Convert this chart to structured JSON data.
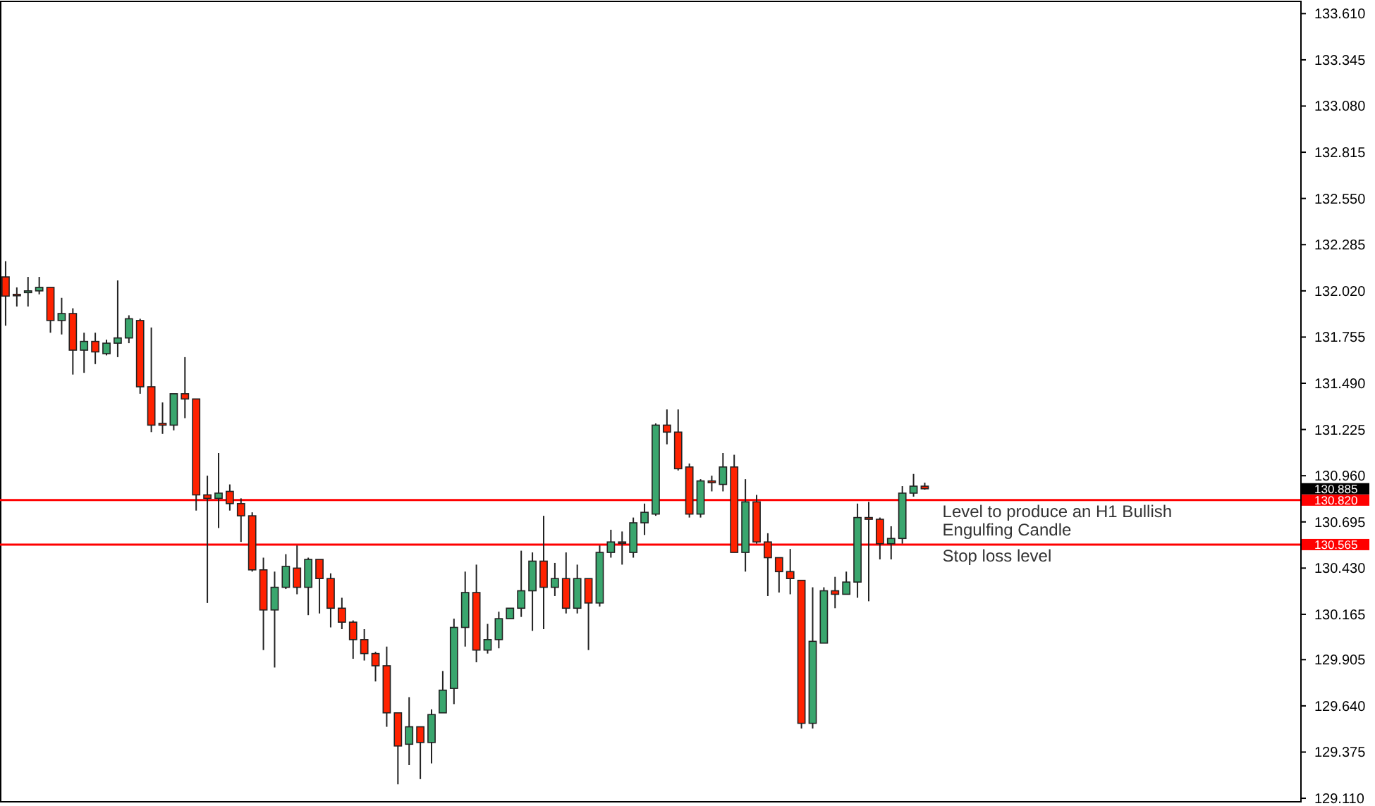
{
  "chart_data": {
    "type": "candlestick",
    "categories": [
      null,
      null,
      null,
      null,
      null,
      null,
      null,
      null,
      null,
      null,
      null,
      null,
      null,
      null,
      null,
      null,
      null,
      null,
      null,
      null,
      null,
      null,
      null,
      null,
      null,
      null,
      null,
      null,
      null,
      null,
      null,
      null,
      null,
      null,
      null,
      null,
      null,
      null,
      null,
      null,
      null,
      null,
      null,
      null,
      null,
      null,
      null,
      null,
      null,
      null,
      null,
      null,
      null,
      null,
      null,
      null,
      null,
      null,
      null,
      null,
      null,
      null,
      null,
      null,
      null,
      null,
      null,
      null,
      null,
      null,
      null,
      null,
      null,
      null,
      null,
      null,
      null,
      null,
      null,
      null,
      null,
      null,
      null,
      null,
      null,
      null,
      null,
      null,
      null,
      null,
      null,
      null,
      null,
      null,
      null,
      null,
      null,
      null,
      null,
      null,
      null,
      null,
      null,
      null,
      null,
      null,
      null,
      null,
      null,
      null,
      null,
      null,
      null,
      null,
      null,
      null
    ],
    "ohlc": [
      [
        132.1,
        132.19,
        131.82,
        131.99
      ],
      [
        132.0,
        132.04,
        131.93,
        132.0
      ],
      [
        132.01,
        132.1,
        131.93,
        132.02
      ],
      [
        132.02,
        132.1,
        132.0,
        132.04
      ],
      [
        132.04,
        132.04,
        131.78,
        131.85
      ],
      [
        131.85,
        131.98,
        131.77,
        131.89
      ],
      [
        131.89,
        131.92,
        131.54,
        131.68
      ],
      [
        131.68,
        131.78,
        131.55,
        131.73
      ],
      [
        131.73,
        131.78,
        131.6,
        131.67
      ],
      [
        131.66,
        131.74,
        131.65,
        131.72
      ],
      [
        131.72,
        132.08,
        131.64,
        131.75
      ],
      [
        131.75,
        131.88,
        131.72,
        131.86
      ],
      [
        131.85,
        131.86,
        131.43,
        131.47
      ],
      [
        131.47,
        131.81,
        131.21,
        131.25
      ],
      [
        131.26,
        131.38,
        131.2,
        131.25
      ],
      [
        131.25,
        131.43,
        131.22,
        131.43
      ],
      [
        131.43,
        131.64,
        131.29,
        131.4
      ],
      [
        131.4,
        131.4,
        130.76,
        130.85
      ],
      [
        130.85,
        130.96,
        130.23,
        130.83
      ],
      [
        130.83,
        131.09,
        130.66,
        130.86
      ],
      [
        130.87,
        130.91,
        130.76,
        130.8
      ],
      [
        130.8,
        130.83,
        130.58,
        130.73
      ],
      [
        130.73,
        130.75,
        130.41,
        130.42
      ],
      [
        130.42,
        130.49,
        129.96,
        130.19
      ],
      [
        130.19,
        130.41,
        129.86,
        130.32
      ],
      [
        130.32,
        130.51,
        130.31,
        130.44
      ],
      [
        130.43,
        130.56,
        130.28,
        130.32
      ],
      [
        130.32,
        130.49,
        130.16,
        130.48
      ],
      [
        130.48,
        130.48,
        130.17,
        130.37
      ],
      [
        130.37,
        130.4,
        130.09,
        130.2
      ],
      [
        130.2,
        130.26,
        130.08,
        130.12
      ],
      [
        130.12,
        130.13,
        129.91,
        130.02
      ],
      [
        130.02,
        130.08,
        129.9,
        129.94
      ],
      [
        129.94,
        129.95,
        129.78,
        129.87
      ],
      [
        129.87,
        129.98,
        129.52,
        129.6
      ],
      [
        129.6,
        129.6,
        129.19,
        129.41
      ],
      [
        129.42,
        129.69,
        129.3,
        129.52
      ],
      [
        129.52,
        129.52,
        129.22,
        129.43
      ],
      [
        129.43,
        129.62,
        129.31,
        129.59
      ],
      [
        129.6,
        129.84,
        129.6,
        129.73
      ],
      [
        129.74,
        130.14,
        129.65,
        130.09
      ],
      [
        130.09,
        130.41,
        129.98,
        130.29
      ],
      [
        130.29,
        130.45,
        129.89,
        129.96
      ],
      [
        129.96,
        130.11,
        129.94,
        130.02
      ],
      [
        130.02,
        130.18,
        129.97,
        130.14
      ],
      [
        130.14,
        130.2,
        130.14,
        130.2
      ],
      [
        130.2,
        130.53,
        130.15,
        130.3
      ],
      [
        130.3,
        130.52,
        130.07,
        130.47
      ],
      [
        130.47,
        130.73,
        130.08,
        130.32
      ],
      [
        130.32,
        130.46,
        130.27,
        130.37
      ],
      [
        130.37,
        130.52,
        130.17,
        130.2
      ],
      [
        130.2,
        130.45,
        130.17,
        130.37
      ],
      [
        130.37,
        130.37,
        129.96,
        130.23
      ],
      [
        130.23,
        130.56,
        130.21,
        130.52
      ],
      [
        130.52,
        130.65,
        130.49,
        130.58
      ],
      [
        130.58,
        130.64,
        130.45,
        130.58
      ],
      [
        130.52,
        130.72,
        130.49,
        130.69
      ],
      [
        130.69,
        130.8,
        130.62,
        130.75
      ],
      [
        130.74,
        131.26,
        130.73,
        131.25
      ],
      [
        131.25,
        131.34,
        131.14,
        131.21
      ],
      [
        131.21,
        131.34,
        130.99,
        131.0
      ],
      [
        131.01,
        131.03,
        130.72,
        130.74
      ],
      [
        130.74,
        130.94,
        130.72,
        130.93
      ],
      [
        130.93,
        130.96,
        130.87,
        130.92
      ],
      [
        130.91,
        131.09,
        130.87,
        131.01
      ],
      [
        131.01,
        131.08,
        130.52,
        130.52
      ],
      [
        130.52,
        130.94,
        130.41,
        130.81
      ],
      [
        130.81,
        130.85,
        130.57,
        130.58
      ],
      [
        130.58,
        130.63,
        130.27,
        130.49
      ],
      [
        130.49,
        130.49,
        130.29,
        130.41
      ],
      [
        130.41,
        130.54,
        130.28,
        130.37
      ],
      [
        130.36,
        130.36,
        129.51,
        129.54
      ],
      [
        129.54,
        130.32,
        129.51,
        130.01
      ],
      [
        130.0,
        130.32,
        130.0,
        130.3
      ],
      [
        130.3,
        130.38,
        130.2,
        130.28
      ],
      [
        130.28,
        130.41,
        130.28,
        130.35
      ],
      [
        130.35,
        130.8,
        130.26,
        130.72
      ],
      [
        130.72,
        130.81,
        130.24,
        130.71
      ],
      [
        130.71,
        130.72,
        130.48,
        130.57
      ],
      [
        130.57,
        130.67,
        130.48,
        130.6
      ],
      [
        130.6,
        130.9,
        130.57,
        130.86
      ],
      [
        130.86,
        130.97,
        130.84,
        130.9
      ],
      [
        130.9,
        130.92,
        130.88,
        130.885
      ],
      null,
      null,
      null,
      null,
      null,
      null,
      null,
      null,
      null,
      null,
      null,
      null,
      null,
      null,
      null,
      null,
      null,
      null,
      null,
      null,
      null,
      null,
      null,
      null,
      null,
      null,
      null,
      null,
      null,
      null,
      null,
      null,
      null
    ],
    "colors": [
      "#ff2200",
      "#ff2200",
      "#3aa66e",
      "#3aa66e",
      "#ff2200",
      "#3aa66e",
      "#ff2200",
      "#3aa66e",
      "#ff2200",
      "#3aa66e",
      "#3aa66e",
      "#3aa66e",
      "#ff2200",
      "#ff2200",
      "#ff2200",
      "#3aa66e",
      "#ff2200",
      "#ff2200",
      "#ff2200",
      "#3aa66e",
      "#ff2200",
      "#ff2200",
      "#ff2200",
      "#ff2200",
      "#3aa66e",
      "#3aa66e",
      "#ff2200",
      "#3aa66e",
      "#ff2200",
      "#ff2200",
      "#ff2200",
      "#ff2200",
      "#ff2200",
      "#ff2200",
      "#ff2200",
      "#ff2200",
      "#3aa66e",
      "#ff2200",
      "#3aa66e",
      "#3aa66e",
      "#3aa66e",
      "#3aa66e",
      "#ff2200",
      "#3aa66e",
      "#3aa66e",
      "#3aa66e",
      "#3aa66e",
      "#3aa66e",
      "#ff2200",
      "#3aa66e",
      "#ff2200",
      "#3aa66e",
      "#ff2200",
      "#3aa66e",
      "#3aa66e",
      "#ff2200",
      "#3aa66e",
      "#3aa66e",
      "#3aa66e",
      "#ff2200",
      "#ff2200",
      "#ff2200",
      "#3aa66e",
      "#ff2200",
      "#3aa66e",
      "#ff2200",
      "#3aa66e",
      "#ff2200",
      "#ff2200",
      "#ff2200",
      "#ff2200",
      "#ff2200",
      "#3aa66e",
      "#3aa66e",
      "#ff2200",
      "#3aa66e",
      "#3aa66e",
      "#ff2200",
      "#ff2200",
      "#3aa66e",
      "#3aa66e",
      "#3aa66e",
      "#ff2200",
      null,
      null,
      null,
      null,
      null,
      null,
      null,
      null,
      null,
      null,
      null,
      null,
      null,
      null,
      null,
      null,
      null,
      null,
      null,
      null,
      null,
      null,
      null,
      null,
      null,
      null,
      null,
      null,
      null,
      null,
      null,
      null,
      null
    ],
    "ylim": [
      129.09,
      133.68
    ],
    "yticks": [
      {
        "value": 133.61,
        "label": "133.610"
      },
      {
        "value": 133.345,
        "label": "133.345"
      },
      {
        "value": 133.08,
        "label": "133.080"
      },
      {
        "value": 132.815,
        "label": "132.815"
      },
      {
        "value": 132.55,
        "label": "132.550"
      },
      {
        "value": 132.285,
        "label": "132.285"
      },
      {
        "value": 132.02,
        "label": "132.020"
      },
      {
        "value": 131.755,
        "label": "131.755"
      },
      {
        "value": 131.49,
        "label": "131.490"
      },
      {
        "value": 131.225,
        "label": "131.225"
      },
      {
        "value": 130.96,
        "label": "130.960"
      },
      {
        "value": 130.695,
        "label": "130.695"
      },
      {
        "value": 130.43,
        "label": "130.430"
      },
      {
        "value": 130.165,
        "label": "130.165"
      },
      {
        "value": 129.905,
        "label": "129.905"
      },
      {
        "value": 129.64,
        "label": "129.640"
      },
      {
        "value": 129.375,
        "label": "129.375"
      },
      {
        "value": 129.11,
        "label": "129.110"
      }
    ],
    "tick_labels": "y",
    "grid": false,
    "ref_lines": [
      {
        "axis": "y",
        "value": 130.82,
        "label": "Level to produce an H1 Bullish Engulfing Candle",
        "color": "#ff0000"
      },
      {
        "axis": "y",
        "value": 130.565,
        "label": "Stop loss level",
        "color": "#ff0000"
      }
    ],
    "annotations": [
      "130.885",
      "130.820",
      "130.565"
    ]
  }
}
